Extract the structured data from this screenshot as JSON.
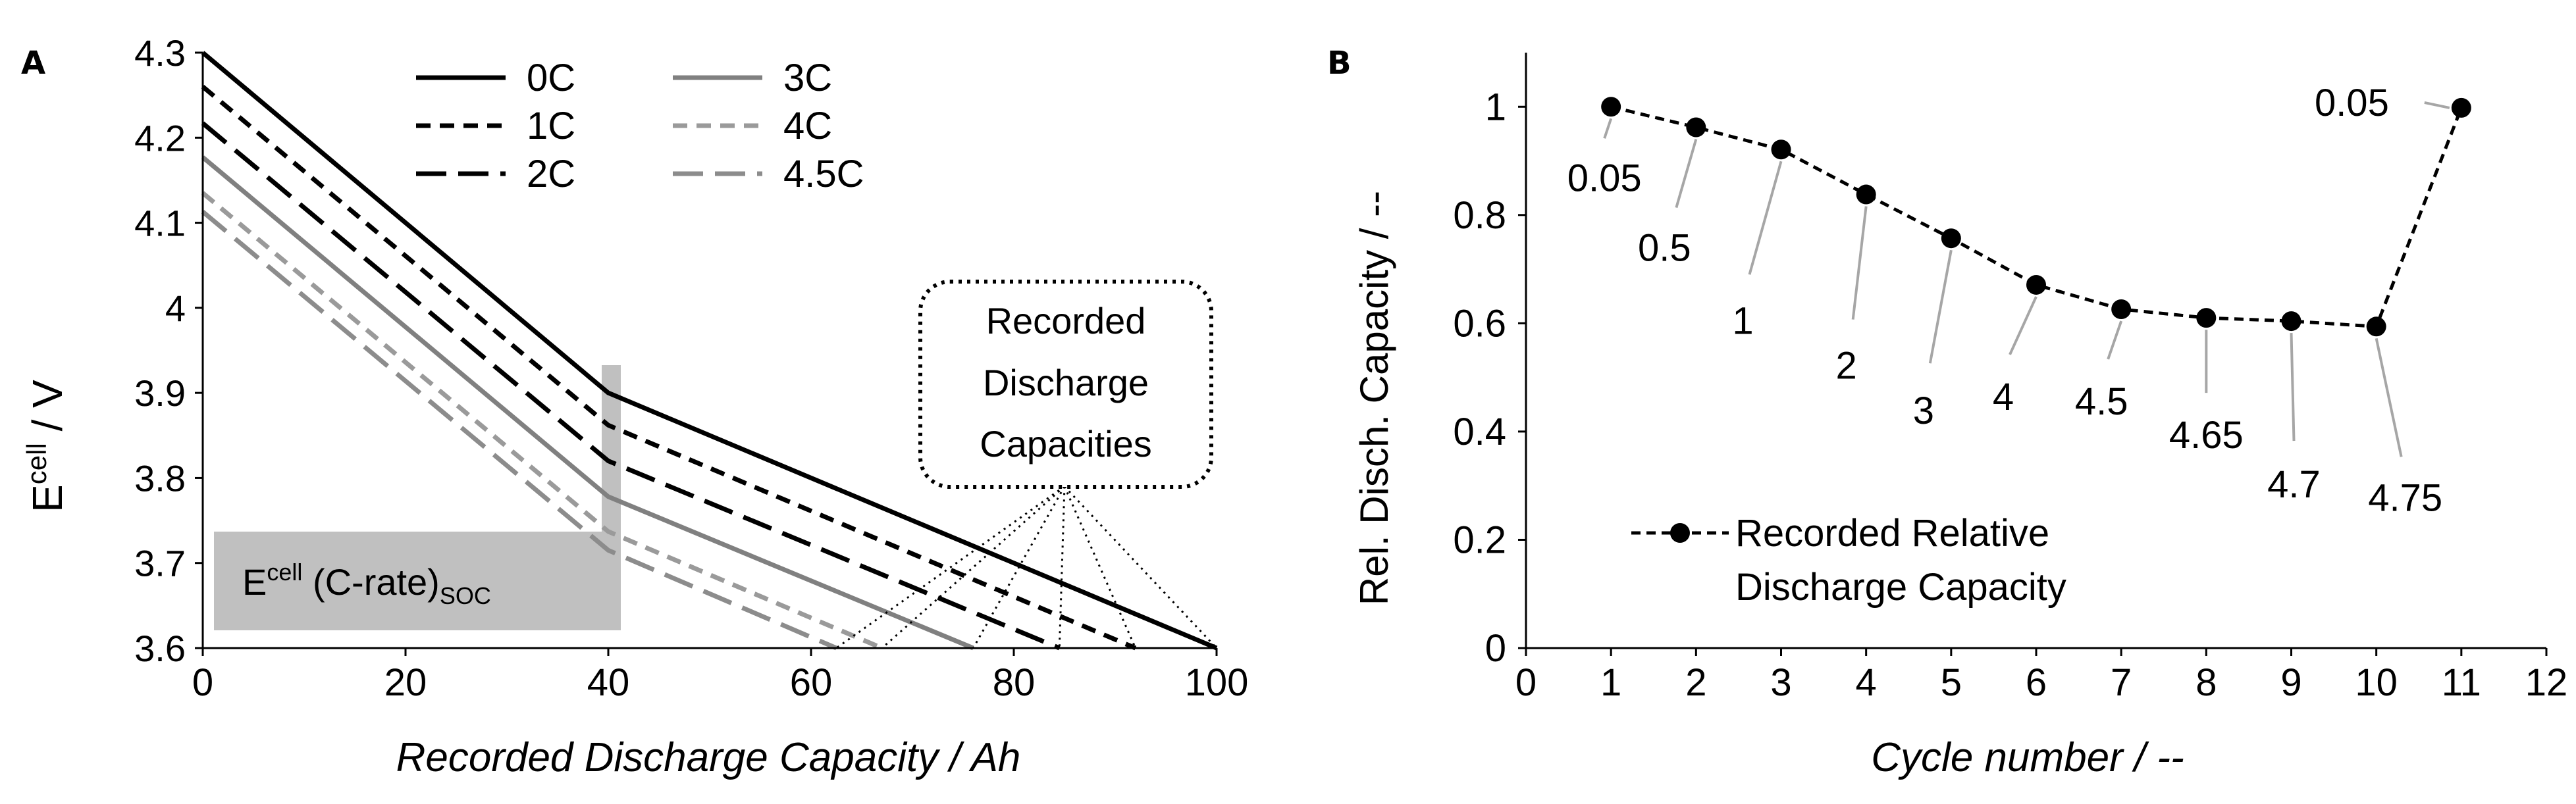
{
  "chart_data": [
    {
      "panel": "A",
      "type": "line",
      "xlabel": "Recorded Discharge Capacity / Ah",
      "ylabel_main": "E",
      "ylabel_sup": "cell",
      "ylabel_unit": " / V",
      "xlim": [
        0,
        100
      ],
      "ylim": [
        3.6,
        4.3
      ],
      "xticks": [
        "0",
        "20",
        "40",
        "60",
        "80",
        "100"
      ],
      "yticks": [
        "3.6",
        "3.7",
        "3.8",
        "3.9",
        "4",
        "4.1",
        "4.2",
        "4.3"
      ],
      "series": [
        {
          "name": "0C",
          "color": "#000000",
          "dash": "solid",
          "points": [
            [
              0,
              4.3
            ],
            [
              40,
              3.9
            ],
            [
              100,
              3.6
            ]
          ]
        },
        {
          "name": "1C",
          "color": "#000000",
          "dash": "short",
          "points": [
            [
              0,
              4.26
            ],
            [
              40,
              3.862
            ],
            [
              92,
              3.6
            ]
          ]
        },
        {
          "name": "2C",
          "color": "#000000",
          "dash": "long",
          "points": [
            [
              0,
              4.217
            ],
            [
              40,
              3.82
            ],
            [
              84.5,
              3.6
            ]
          ]
        },
        {
          "name": "3C",
          "color": "#808080",
          "dash": "solid",
          "points": [
            [
              0,
              4.177
            ],
            [
              40,
              3.778
            ],
            [
              76,
              3.6
            ]
          ]
        },
        {
          "name": "4C",
          "color": "#9a9a9a",
          "dash": "short",
          "points": [
            [
              0,
              4.135
            ],
            [
              40,
              3.737
            ],
            [
              67,
              3.6
            ]
          ]
        },
        {
          "name": "4.5C",
          "color": "#8c8c8c",
          "dash": "long",
          "points": [
            [
              0,
              4.113
            ],
            [
              40,
              3.715
            ],
            [
              62.5,
              3.6
            ]
          ]
        }
      ],
      "legend": [
        "0C",
        "1C",
        "2C",
        "3C",
        "4C",
        "4.5C"
      ],
      "callout": {
        "lines": [
          "Recorded",
          "Discharge",
          "Capacities"
        ],
        "apex": [
          85,
          3.79
        ],
        "targets": [
          100,
          92,
          84.5,
          76,
          67,
          62.5
        ]
      },
      "soc_box": {
        "main": "E",
        "sup": "cell",
        "mid": " (C-rate)",
        "sub": "SOC"
      }
    },
    {
      "panel": "B",
      "type": "scatter",
      "xlabel": "Cycle number / --",
      "ylabel": "Rel. Disch. Capacity / --",
      "xlim": [
        0,
        12
      ],
      "ylim": [
        0,
        1.1
      ],
      "xticks": [
        "0",
        "1",
        "2",
        "3",
        "4",
        "5",
        "6",
        "7",
        "8",
        "9",
        "10",
        "11",
        "12"
      ],
      "yticks": [
        "0",
        "0.2",
        "0.4",
        "0.6",
        "0.8",
        "1"
      ],
      "series": [
        {
          "name": "Recorded Relative Discharge Capacity",
          "x": [
            1,
            2,
            3,
            4,
            5,
            6,
            7,
            8,
            9,
            10,
            11
          ],
          "y": [
            1.0,
            0.962,
            0.921,
            0.838,
            0.757,
            0.671,
            0.626,
            0.61,
            0.604,
            0.594,
            0.998
          ]
        }
      ],
      "point_labels": [
        "0.05",
        "0.5",
        "1",
        "2",
        "3",
        "4",
        "4.5",
        "4.65",
        "4.7",
        "4.75",
        "0.05"
      ],
      "legend": [
        "Recorded Relative",
        "Discharge Capacity"
      ]
    }
  ]
}
